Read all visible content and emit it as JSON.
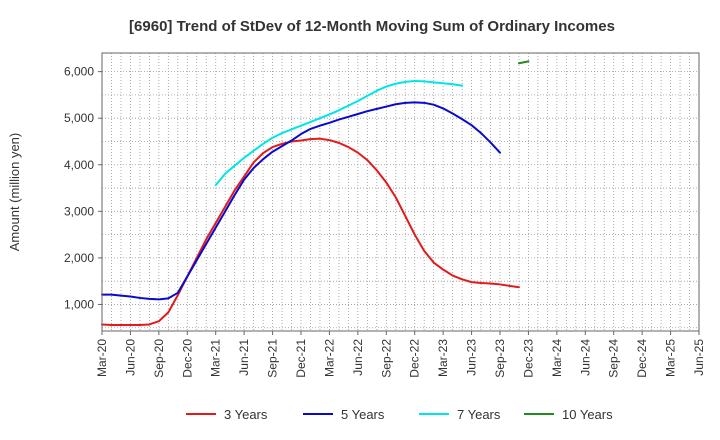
{
  "chart_data": {
    "type": "line",
    "title": "[6960]  Trend of StDev of 12-Month Moving Sum of Ordinary Incomes",
    "xlabel": "",
    "ylabel": "Amount (million yen)",
    "x_tick_labels": [
      "Mar-20",
      "Jun-20",
      "Sep-20",
      "Dec-20",
      "Mar-21",
      "Jun-21",
      "Sep-21",
      "Dec-21",
      "Mar-22",
      "Jun-22",
      "Sep-22",
      "Dec-22",
      "Mar-23",
      "Jun-23",
      "Sep-23",
      "Dec-23",
      "Mar-24",
      "Jun-24",
      "Sep-24",
      "Dec-24",
      "Mar-25",
      "Jun-25"
    ],
    "y_ticks": [
      1000,
      2000,
      3000,
      4000,
      5000,
      6000
    ],
    "y_tick_labels": [
      "1,000",
      "2,000",
      "3,000",
      "4,000",
      "5,000",
      "6,000"
    ],
    "ylim": [
      430,
      6400
    ],
    "grid": true,
    "legend_position": "bottom",
    "series": [
      {
        "name": "3 Years",
        "color": "#e31a1c",
        "start_index": 0,
        "values": [
          570,
          560,
          560,
          560,
          560,
          570,
          640,
          830,
          1200,
          1600,
          2000,
          2400,
          2750,
          3100,
          3450,
          3750,
          4050,
          4250,
          4380,
          4450,
          4500,
          4520,
          4550,
          4560,
          4530,
          4470,
          4380,
          4260,
          4100,
          3880,
          3620,
          3300,
          2900,
          2500,
          2150,
          1900,
          1750,
          1620,
          1540,
          1480,
          1460,
          1450,
          1430,
          1400,
          1370
        ]
      },
      {
        "name": "5 Years",
        "color": "#0a0acc",
        "start_index": 0,
        "values": [
          1210,
          1210,
          1190,
          1170,
          1140,
          1120,
          1110,
          1130,
          1250,
          1600,
          1950,
          2300,
          2650,
          3000,
          3350,
          3680,
          3930,
          4120,
          4280,
          4400,
          4520,
          4660,
          4770,
          4840,
          4900,
          4970,
          5030,
          5090,
          5150,
          5200,
          5250,
          5300,
          5330,
          5340,
          5330,
          5290,
          5210,
          5100,
          4980,
          4850,
          4680,
          4480,
          4260
        ]
      },
      {
        "name": "7 Years",
        "color": "#00e5e5",
        "start_index": 12,
        "values": [
          3560,
          3810,
          3980,
          4150,
          4300,
          4450,
          4580,
          4680,
          4760,
          4840,
          4920,
          5000,
          5080,
          5170,
          5270,
          5370,
          5480,
          5590,
          5680,
          5740,
          5780,
          5800,
          5790,
          5770,
          5750,
          5730,
          5700
        ]
      },
      {
        "name": "10 Years",
        "color": "#228b22",
        "start_index": 44,
        "values": [
          6180,
          6220
        ]
      }
    ]
  }
}
